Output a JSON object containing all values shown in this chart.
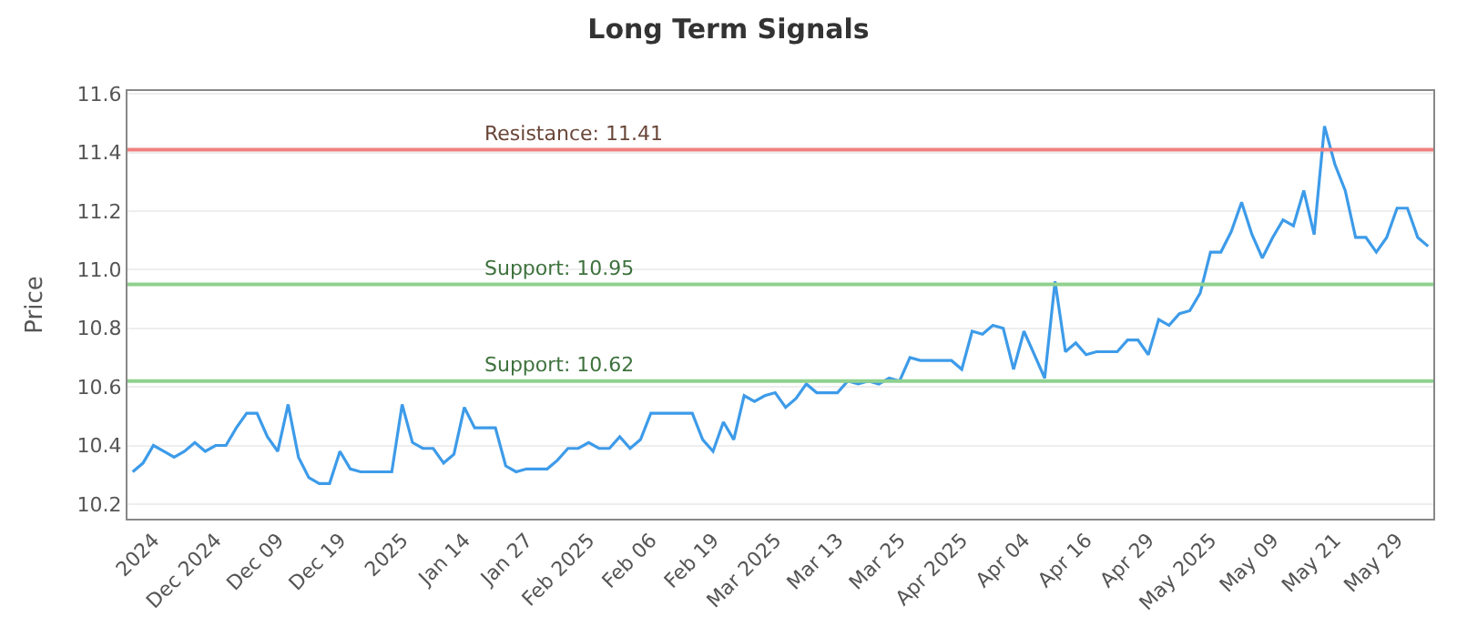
{
  "chart_data": {
    "type": "line",
    "title": "Long Term Signals",
    "ylabel": "Price",
    "categories": [
      null,
      null,
      "2024",
      null,
      null,
      null,
      null,
      null,
      "Dec 2024",
      null,
      null,
      null,
      null,
      null,
      "Dec 09",
      null,
      null,
      null,
      null,
      null,
      "Dec 19",
      null,
      null,
      null,
      null,
      null,
      "2025",
      null,
      null,
      null,
      null,
      null,
      "Jan 14",
      null,
      null,
      null,
      null,
      null,
      "Jan 27",
      null,
      null,
      null,
      null,
      null,
      "Feb 2025",
      null,
      null,
      null,
      null,
      null,
      "Feb 06",
      null,
      null,
      null,
      null,
      null,
      "Feb 19",
      null,
      null,
      null,
      null,
      null,
      "Mar 2025",
      null,
      null,
      null,
      null,
      null,
      "Mar 13",
      null,
      null,
      null,
      null,
      null,
      "Mar 25",
      null,
      null,
      null,
      null,
      null,
      "Apr 2025",
      null,
      null,
      null,
      null,
      null,
      "Apr 04",
      null,
      null,
      null,
      null,
      null,
      "Apr 16",
      null,
      null,
      null,
      null,
      null,
      "Apr 29",
      null,
      null,
      null,
      null,
      null,
      "May 2025",
      null,
      null,
      null,
      null,
      null,
      "May 09",
      null,
      null,
      null,
      null,
      null,
      "May 21",
      null,
      null,
      null,
      null,
      null,
      "May 29",
      null,
      null,
      null
    ],
    "series": [
      {
        "color": "#3d9be9",
        "values": [
          10.31,
          10.34,
          10.4,
          10.38,
          10.36,
          10.38,
          10.41,
          10.38,
          10.4,
          10.4,
          10.46,
          10.51,
          10.51,
          10.43,
          10.38,
          10.54,
          10.36,
          10.29,
          10.27,
          10.27,
          10.38,
          10.32,
          10.31,
          10.31,
          10.31,
          10.31,
          10.54,
          10.41,
          10.39,
          10.39,
          10.34,
          10.37,
          10.53,
          10.46,
          10.46,
          10.46,
          10.33,
          10.31,
          10.32,
          10.32,
          10.32,
          10.35,
          10.39,
          10.39,
          10.41,
          10.39,
          10.39,
          10.43,
          10.39,
          10.42,
          10.51,
          10.51,
          10.51,
          10.51,
          10.51,
          10.42,
          10.38,
          10.48,
          10.42,
          10.57,
          10.55,
          10.57,
          10.58,
          10.53,
          10.56,
          10.61,
          10.58,
          10.58,
          10.58,
          10.62,
          10.61,
          10.62,
          10.61,
          10.63,
          10.62,
          10.7,
          10.69,
          10.69,
          10.69,
          10.69,
          10.66,
          10.79,
          10.78,
          10.81,
          10.8,
          10.66,
          10.79,
          10.71,
          10.63,
          10.96,
          10.72,
          10.75,
          10.71,
          10.72,
          10.72,
          10.72,
          10.76,
          10.76,
          10.71,
          10.83,
          10.81,
          10.85,
          10.86,
          10.92,
          11.06,
          11.06,
          11.13,
          11.23,
          11.12,
          11.04,
          11.11,
          11.17,
          11.15,
          11.27,
          11.12,
          11.49,
          11.36,
          11.27,
          11.11,
          11.11,
          11.06,
          11.11,
          11.21,
          11.21,
          11.11,
          11.08
        ]
      }
    ],
    "ylim": [
      10.15,
      11.61
    ],
    "yticks": [
      10.2,
      10.4,
      10.6,
      10.8,
      {
        "value": 11.0,
        "label": "11.0"
      },
      11.2,
      11.4,
      11.6
    ],
    "ref_lines": [
      {
        "axis": "y",
        "value": 11.41,
        "label": "Resistance: 11.41",
        "color": "#f08080"
      },
      {
        "axis": "y",
        "value": 10.95,
        "label": "Support: 10.95",
        "color": "#8fd18f"
      },
      {
        "axis": "y",
        "value": 10.62,
        "label": "Support: 10.62",
        "color": "#8fd18f"
      }
    ],
    "grid": "y",
    "marker": "none",
    "line_style": "solid"
  }
}
